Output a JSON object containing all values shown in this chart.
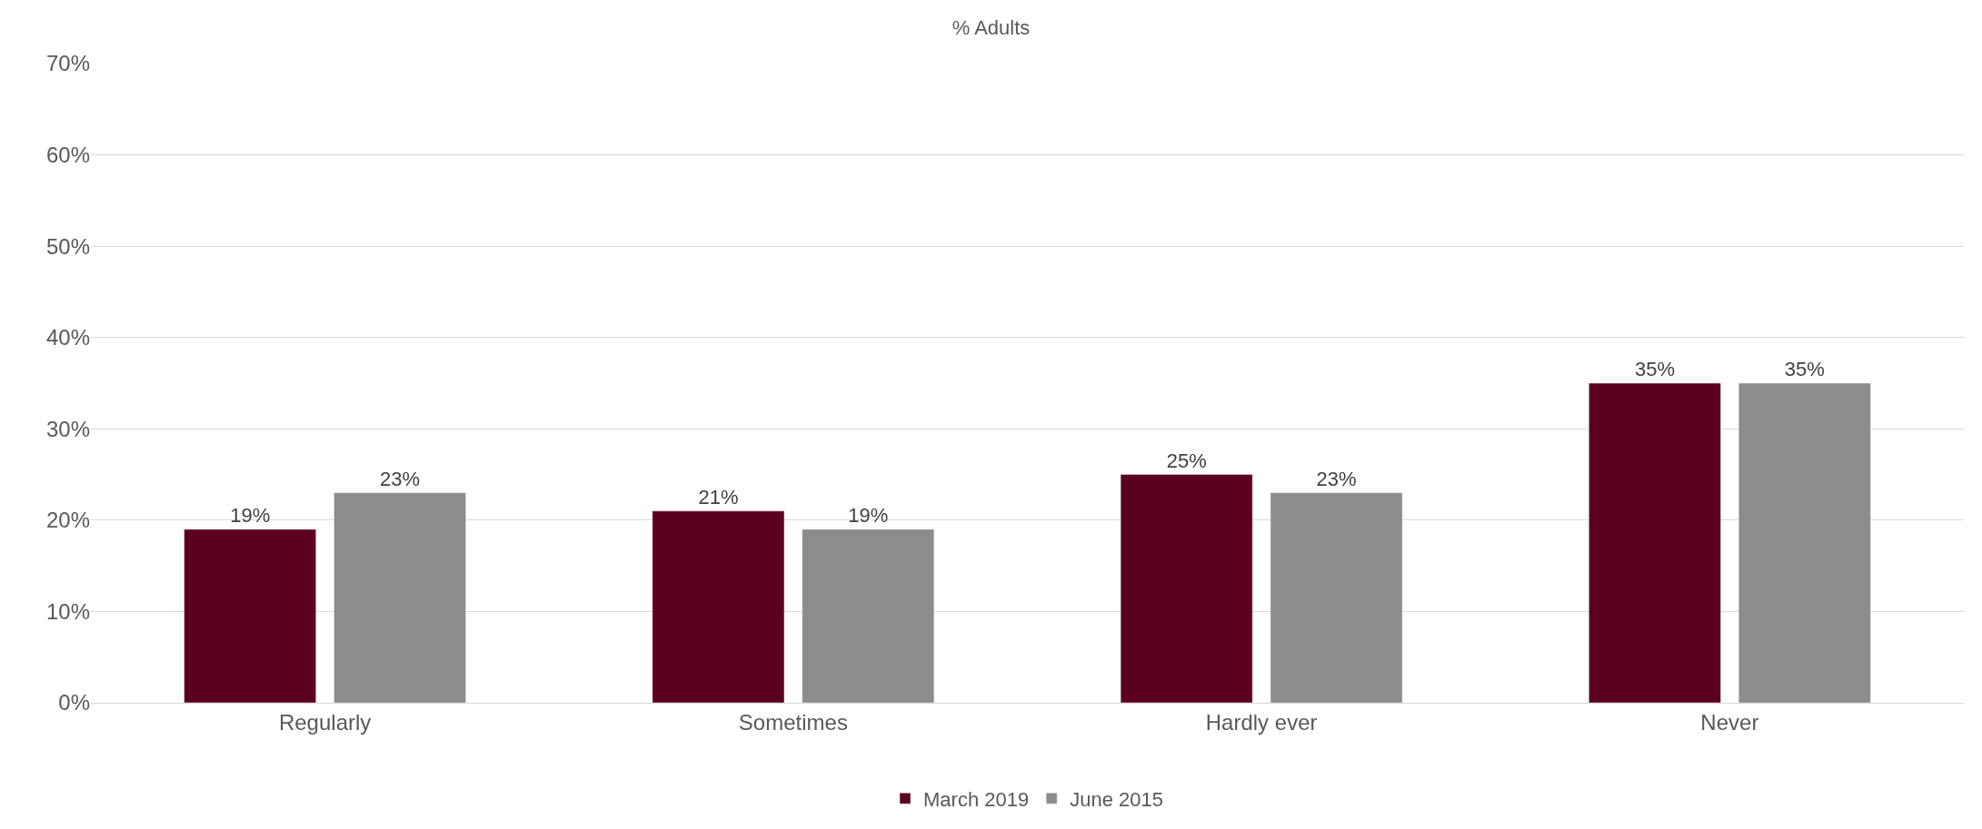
{
  "chart_data": {
    "type": "bar",
    "title": "% Adults",
    "categories": [
      "Regularly",
      "Sometimes",
      "Hardly ever",
      "Never"
    ],
    "series": [
      {
        "name": "March 2019",
        "color": "#5c0020",
        "values": [
          19,
          21,
          25,
          35
        ],
        "value_labels": [
          "19%",
          "21%",
          "25%",
          "35%"
        ]
      },
      {
        "name": "June 2015",
        "color": "#8c8c8c",
        "values": [
          23,
          19,
          23,
          35
        ],
        "value_labels": [
          "23%",
          "19%",
          "23%",
          "35%"
        ]
      }
    ],
    "ylim": [
      0,
      70
    ],
    "yticks": [
      {
        "value": 0,
        "label": "0%"
      },
      {
        "value": 10,
        "label": "10%"
      },
      {
        "value": 20,
        "label": "20%"
      },
      {
        "value": 30,
        "label": "30%"
      },
      {
        "value": 40,
        "label": "40%"
      },
      {
        "value": 50,
        "label": "50%"
      },
      {
        "value": 60,
        "label": "60%"
      },
      {
        "value": 70,
        "label": "70%"
      }
    ],
    "grid": "y",
    "legend": "bottom"
  }
}
